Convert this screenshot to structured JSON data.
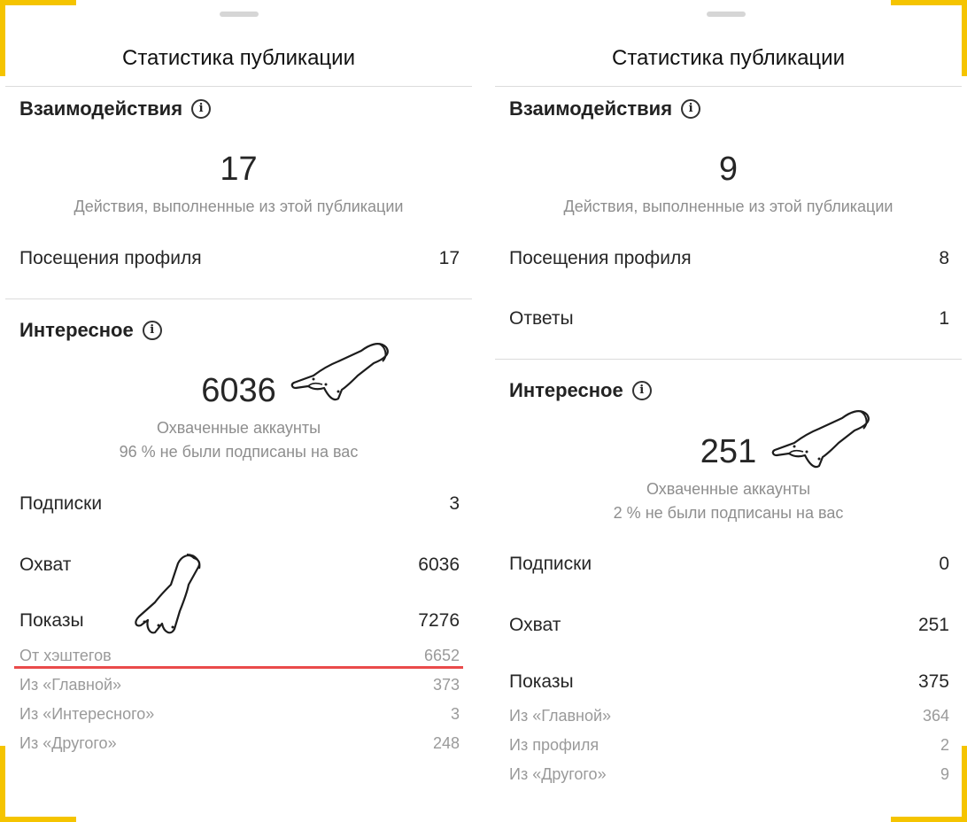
{
  "left": {
    "title": "Статистика публикации",
    "interactions": {
      "heading": "Взаимодействия",
      "total": "17",
      "caption": "Действия, выполненные из этой публикации",
      "rows": [
        {
          "label": "Посещения профиля",
          "value": "17"
        }
      ]
    },
    "discovery": {
      "heading": "Интересное",
      "total": "6036",
      "caption": "Охваченные аккаунты",
      "caption2": "96 % не были подписаны на вас",
      "rows": [
        {
          "label": "Подписки",
          "value": "3"
        },
        {
          "label": "Охват",
          "value": "6036"
        },
        {
          "label": "Показы",
          "value": "7276"
        }
      ],
      "subrows": [
        {
          "label": "От хэштегов",
          "value": "6652"
        },
        {
          "label": "Из «Главной»",
          "value": "373"
        },
        {
          "label": "Из «Интересного»",
          "value": "3"
        },
        {
          "label": "Из «Другого»",
          "value": "248"
        }
      ]
    }
  },
  "right": {
    "title": "Статистика публикации",
    "interactions": {
      "heading": "Взаимодействия",
      "total": "9",
      "caption": "Действия, выполненные из этой публикации",
      "rows": [
        {
          "label": "Посещения профиля",
          "value": "8"
        },
        {
          "label": "Ответы",
          "value": "1"
        }
      ]
    },
    "discovery": {
      "heading": "Интересное",
      "total": "251",
      "caption": "Охваченные аккаунты",
      "caption2": "2 % не были подписаны на вас",
      "rows": [
        {
          "label": "Подписки",
          "value": "0"
        },
        {
          "label": "Охват",
          "value": "251"
        },
        {
          "label": "Показы",
          "value": "375"
        }
      ],
      "subrows": [
        {
          "label": "Из «Главной»",
          "value": "364"
        },
        {
          "label": "Из профиля",
          "value": "2"
        },
        {
          "label": "Из «Другого»",
          "value": "9"
        }
      ]
    }
  },
  "icons": {
    "info": "info-circle-icon",
    "pointer": "pointing-hand-icon"
  },
  "colors": {
    "frame": "#f5c400",
    "highlight": "#ea4b4b",
    "muted": "#8e8e8e"
  }
}
